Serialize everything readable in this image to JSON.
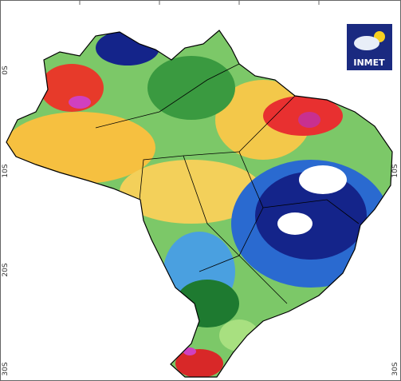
{
  "logo": {
    "text": "INMET"
  },
  "lat_labels_left": [
    "0S",
    "10S",
    "20S",
    "30S"
  ],
  "lat_labels_right": [
    "10S",
    "30S"
  ]
}
